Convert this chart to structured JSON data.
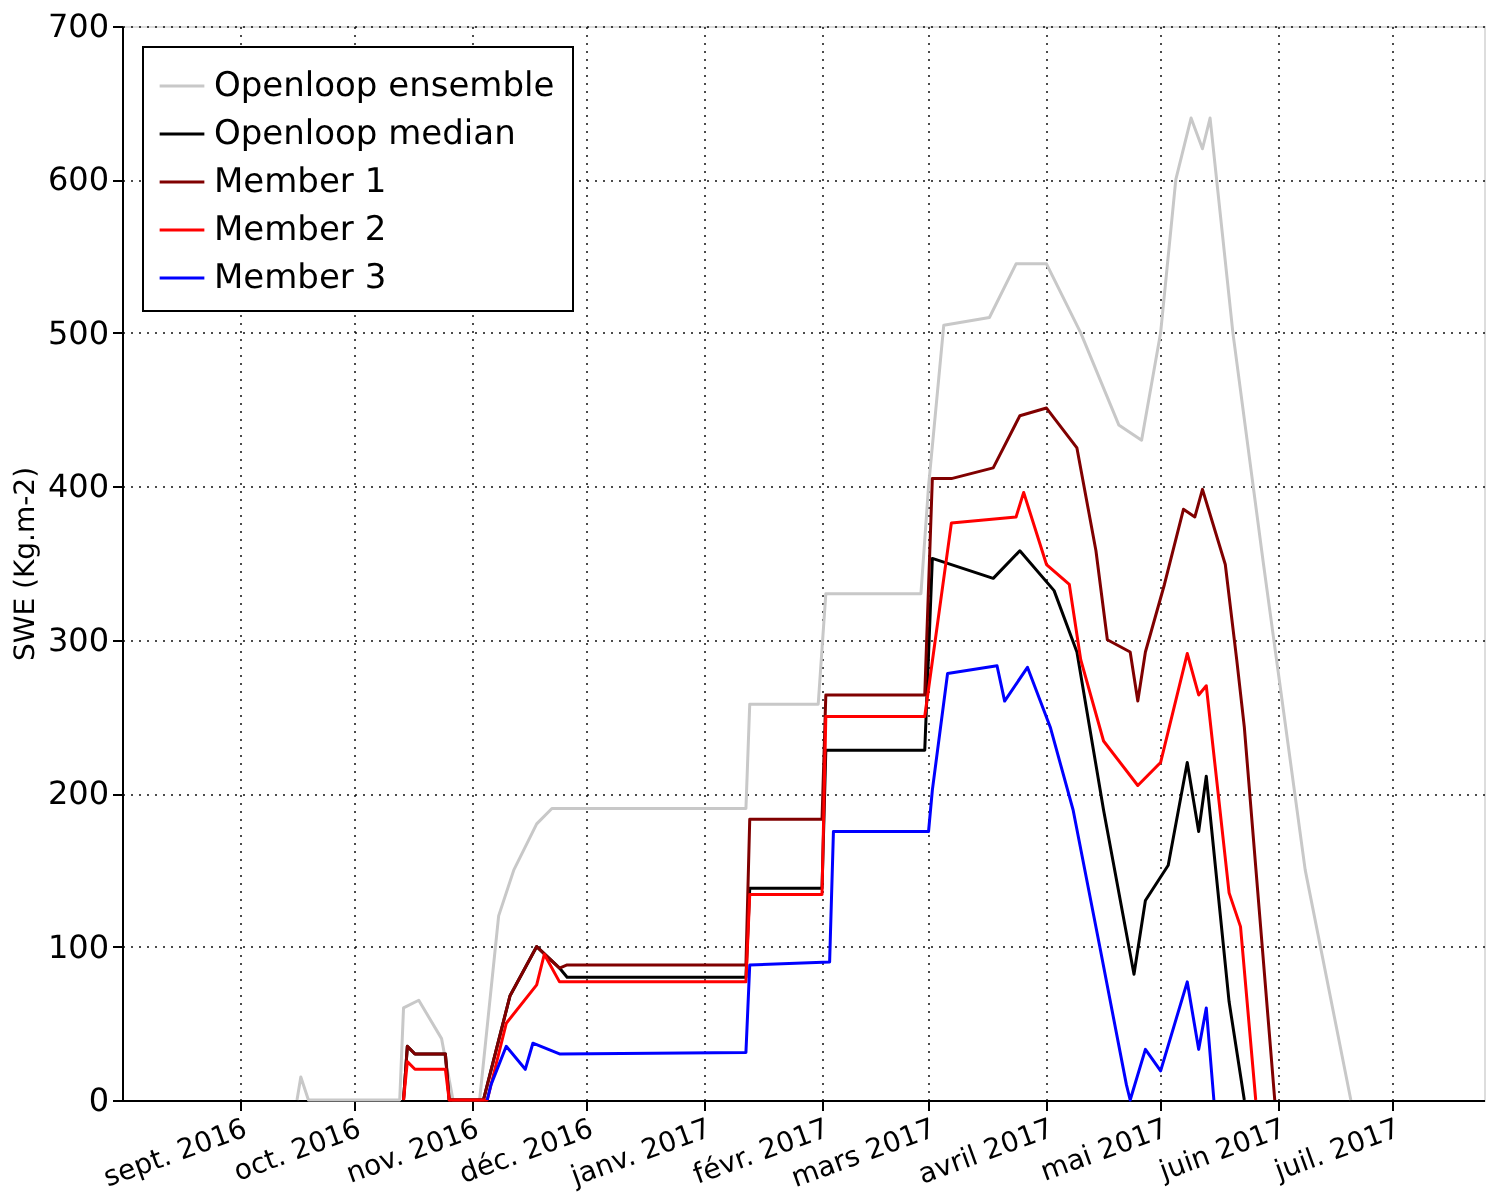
{
  "chart_data": {
    "type": "line",
    "ylabel": "SWE (Kg.m-2)",
    "xlim": [
      "2016-08-01",
      "2017-07-25"
    ],
    "ylim": [
      0,
      700
    ],
    "yticks": [
      0,
      100,
      200,
      300,
      400,
      500,
      600,
      700
    ],
    "xticks": [
      {
        "value": "2016-09-01",
        "label": "sept. 2016"
      },
      {
        "value": "2016-10-01",
        "label": "oct. 2016"
      },
      {
        "value": "2016-11-01",
        "label": "nov. 2016"
      },
      {
        "value": "2016-12-01",
        "label": "déc. 2016"
      },
      {
        "value": "2017-01-01",
        "label": "janv. 2017"
      },
      {
        "value": "2017-02-01",
        "label": "févr. 2017"
      },
      {
        "value": "2017-03-01",
        "label": "mars 2017"
      },
      {
        "value": "2017-04-01",
        "label": "avril 2017"
      },
      {
        "value": "2017-05-01",
        "label": "mai 2017"
      },
      {
        "value": "2017-06-01",
        "label": "juin 2017"
      },
      {
        "value": "2017-07-01",
        "label": "juil. 2017"
      }
    ],
    "grid": true,
    "legend": "top left",
    "marker": "none",
    "line_style": "solid",
    "series": [
      {
        "name": "Openloop ensemble",
        "color": "#c8c8c8",
        "x": [
          "2016-09-16",
          "2016-09-17",
          "2016-09-19",
          "2016-10-13",
          "2016-10-14",
          "2016-10-18",
          "2016-10-24",
          "2016-10-27",
          "2016-11-03",
          "2016-11-08",
          "2016-11-12",
          "2016-11-18",
          "2016-11-22",
          "2017-01-12",
          "2017-01-13",
          "2017-01-31",
          "2017-02-02",
          "2017-02-27",
          "2017-03-01",
          "2017-03-05",
          "2017-03-17",
          "2017-03-24",
          "2017-04-01",
          "2017-04-10",
          "2017-04-20",
          "2017-04-26",
          "2017-05-01",
          "2017-05-05",
          "2017-05-09",
          "2017-05-12",
          "2017-05-14",
          "2017-05-20",
          "2017-05-28",
          "2017-06-08",
          "2017-06-20"
        ],
        "values": [
          0,
          15,
          0,
          0,
          60,
          65,
          40,
          0,
          0,
          120,
          150,
          180,
          190,
          190,
          258,
          258,
          330,
          330,
          400,
          505,
          510,
          545,
          545,
          500,
          440,
          430,
          500,
          600,
          640,
          620,
          640,
          500,
          350,
          150,
          0
        ]
      },
      {
        "name": "Openloop median",
        "color": "#000000",
        "x": [
          "2016-10-14",
          "2016-10-15",
          "2016-10-17",
          "2016-10-25",
          "2016-10-26",
          "2016-11-04",
          "2016-11-11",
          "2016-11-18",
          "2016-11-24",
          "2016-11-26",
          "2017-01-12",
          "2017-01-13",
          "2017-02-01",
          "2017-02-02",
          "2017-02-28",
          "2017-03-02",
          "2017-03-18",
          "2017-03-25",
          "2017-04-03",
          "2017-04-09",
          "2017-04-16",
          "2017-04-24",
          "2017-04-27",
          "2017-05-03",
          "2017-05-08",
          "2017-05-11",
          "2017-05-13",
          "2017-05-19",
          "2017-05-23"
        ],
        "values": [
          0,
          35,
          30,
          30,
          0,
          0,
          68,
          100,
          86,
          80,
          80,
          138,
          138,
          228,
          228,
          353,
          340,
          358,
          332,
          292,
          189,
          82,
          130,
          153,
          220,
          175,
          211,
          64,
          0
        ]
      },
      {
        "name": "Member 1",
        "color": "#800000",
        "x": [
          "2016-10-14",
          "2016-10-15",
          "2016-10-17",
          "2016-10-25",
          "2016-10-26",
          "2016-11-04",
          "2016-11-11",
          "2016-11-18",
          "2016-11-24",
          "2016-11-26",
          "2017-01-12",
          "2017-01-13",
          "2017-02-01",
          "2017-02-02",
          "2017-02-28",
          "2017-03-02",
          "2017-03-07",
          "2017-03-18",
          "2017-03-25",
          "2017-04-01",
          "2017-04-09",
          "2017-04-14",
          "2017-04-17",
          "2017-04-23",
          "2017-04-25",
          "2017-04-27",
          "2017-05-02",
          "2017-05-07",
          "2017-05-10",
          "2017-05-12",
          "2017-05-18",
          "2017-05-21",
          "2017-05-23",
          "2017-05-31"
        ],
        "values": [
          0,
          35,
          30,
          30,
          0,
          0,
          68,
          100,
          86,
          88,
          88,
          183,
          183,
          264,
          264,
          405,
          405,
          412,
          446,
          451,
          425,
          358,
          300,
          292,
          260,
          292,
          336,
          385,
          380,
          398,
          349,
          287,
          243,
          0
        ]
      },
      {
        "name": "Member 2",
        "color": "#ff0000",
        "x": [
          "2016-10-14",
          "2016-10-15",
          "2016-10-17",
          "2016-10-25",
          "2016-10-26",
          "2016-11-05",
          "2016-11-10",
          "2016-11-18",
          "2016-11-20",
          "2016-11-24",
          "2017-01-12",
          "2017-01-13",
          "2017-02-01",
          "2017-02-02",
          "2017-02-28",
          "2017-03-07",
          "2017-03-24",
          "2017-03-26",
          "2017-04-01",
          "2017-04-07",
          "2017-04-10",
          "2017-04-16",
          "2017-04-25",
          "2017-05-01",
          "2017-05-08",
          "2017-05-11",
          "2017-05-13",
          "2017-05-19",
          "2017-05-22",
          "2017-05-26"
        ],
        "values": [
          0,
          25,
          20,
          20,
          0,
          0,
          50,
          75,
          95,
          77,
          77,
          134,
          134,
          250,
          250,
          376,
          380,
          396,
          349,
          336,
          287,
          234,
          205,
          220,
          291,
          264,
          270,
          135,
          113,
          0
        ]
      },
      {
        "name": "Member 3",
        "color": "#0000ff",
        "x": [
          "2016-11-05",
          "2016-11-06",
          "2016-11-10",
          "2016-11-15",
          "2016-11-17",
          "2016-11-24",
          "2017-01-12",
          "2017-01-13",
          "2017-02-03",
          "2017-02-04",
          "2017-03-01",
          "2017-03-02",
          "2017-03-06",
          "2017-03-19",
          "2017-03-21",
          "2017-03-27",
          "2017-04-02",
          "2017-04-08",
          "2017-04-15",
          "2017-04-22",
          "2017-04-23",
          "2017-04-27",
          "2017-05-01",
          "2017-05-08",
          "2017-05-11",
          "2017-05-13",
          "2017-05-15"
        ],
        "values": [
          0,
          10,
          35,
          20,
          37,
          30,
          31,
          88,
          90,
          175,
          175,
          202,
          278,
          283,
          260,
          282,
          243,
          189,
          100,
          10,
          0,
          33,
          19,
          77,
          33,
          60,
          0
        ]
      }
    ]
  }
}
